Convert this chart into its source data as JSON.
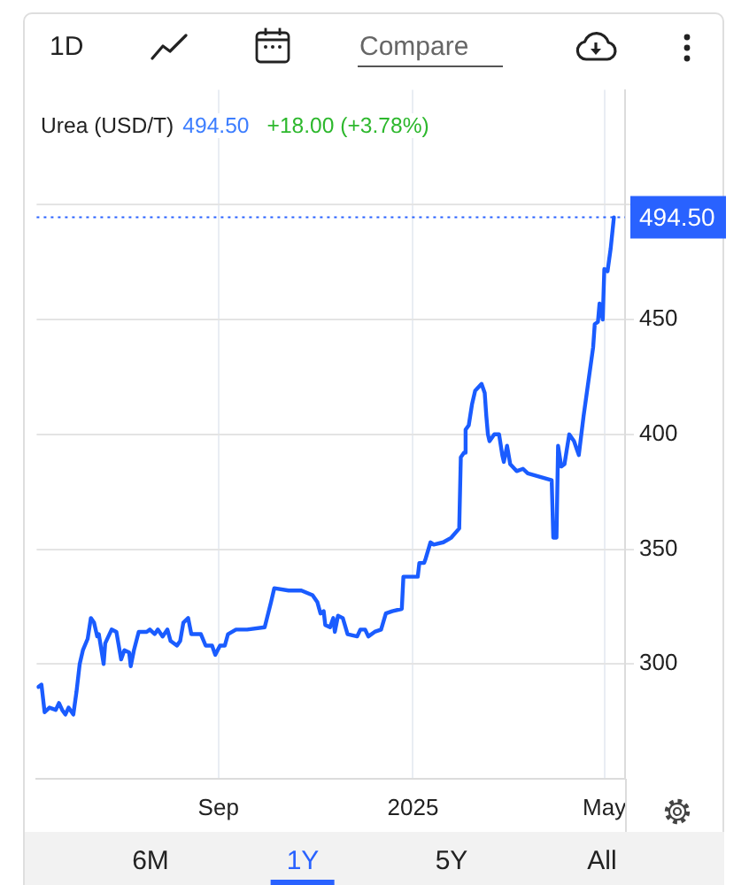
{
  "chart_data": {
    "type": "line",
    "title": "Urea (USD/T)",
    "annotations": [
      "1D",
      "Compare",
      "494.50",
      "+18.00 (+3.78%)",
      "6M",
      "1Y",
      "5Y",
      "All"
    ],
    "x": [
      "2024-05-11",
      "2024-05-13",
      "2024-05-15",
      "2024-05-18",
      "2024-05-22",
      "2024-05-24",
      "2024-05-26",
      "2024-05-28",
      "2024-05-30",
      "2024-06-02",
      "2024-06-04",
      "2024-06-06",
      "2024-06-08",
      "2024-06-11",
      "2024-06-13",
      "2024-06-15",
      "2024-06-17",
      "2024-06-18",
      "2024-06-21",
      "2024-06-22",
      "2024-06-26",
      "2024-06-29",
      "2024-07-02",
      "2024-07-04",
      "2024-07-07",
      "2024-07-08",
      "2024-07-10",
      "2024-07-13",
      "2024-07-18",
      "2024-07-20",
      "2024-07-23",
      "2024-07-25",
      "2024-07-28",
      "2024-07-31",
      "2024-08-02",
      "2024-08-06",
      "2024-08-08",
      "2024-08-10",
      "2024-08-13",
      "2024-08-15",
      "2024-08-21",
      "2024-08-24",
      "2024-08-28",
      "2024-08-30",
      "2024-09-02",
      "2024-09-05",
      "2024-09-07",
      "2024-09-12",
      "2024-09-19",
      "2024-09-30",
      "2024-10-04",
      "2024-10-06",
      "2024-10-15",
      "2024-10-23",
      "2024-10-30",
      "2024-11-02",
      "2024-11-04",
      "2024-11-06",
      "2024-11-07",
      "2024-11-10",
      "2024-11-12",
      "2024-11-13",
      "2024-11-15",
      "2024-11-18",
      "2024-11-21",
      "2024-11-27",
      "2024-11-29",
      "2024-12-02",
      "2024-12-04",
      "2024-12-08",
      "2024-12-12",
      "2024-12-15",
      "2024-12-19",
      "2024-12-25",
      "2024-12-26",
      "2025-01-04",
      "2025-01-05",
      "2025-01-08",
      "2025-01-09",
      "2025-01-12",
      "2025-01-14",
      "2025-01-20",
      "2025-01-25",
      "2025-01-30",
      "2025-01-31",
      "2025-02-02",
      "2025-02-03",
      "2025-02-05",
      "2025-02-07",
      "2025-02-09",
      "2025-02-13",
      "2025-02-15",
      "2025-02-16",
      "2025-02-17",
      "2025-02-18",
      "2025-02-21",
      "2025-02-24",
      "2025-02-26",
      "2025-02-27",
      "2025-03-01",
      "2025-03-03",
      "2025-03-07",
      "2025-03-11",
      "2025-03-14",
      "2025-03-29",
      "2025-03-30",
      "2025-04-01",
      "2025-04-02",
      "2025-04-04",
      "2025-04-06",
      "2025-04-09",
      "2025-04-12",
      "2025-04-15",
      "2025-04-18",
      "2025-04-21",
      "2025-04-24",
      "2025-04-25",
      "2025-04-27",
      "2025-04-28",
      "2025-04-30",
      "2025-05-01",
      "2025-05-03",
      "2025-05-05",
      "2025-05-07"
    ],
    "series": [
      {
        "color": "#1a5cff",
        "values": [
          290,
          291,
          279,
          281,
          280,
          283,
          280,
          278,
          281,
          278,
          288,
          300,
          306,
          311,
          320,
          318,
          312,
          313,
          300,
          309,
          315,
          314,
          302,
          306,
          305,
          299,
          306,
          314,
          314,
          315,
          313,
          315,
          312,
          315,
          310,
          308,
          310,
          318,
          320,
          313,
          313,
          308,
          308,
          304,
          308,
          308,
          313,
          315,
          315,
          316,
          327,
          333,
          332,
          332,
          330,
          327,
          322,
          323,
          317,
          316,
          320,
          314,
          321,
          320,
          313,
          312,
          315,
          315,
          312,
          314,
          315,
          322,
          323,
          324,
          338,
          338,
          344,
          344,
          346,
          353,
          352,
          353,
          355,
          359,
          390,
          392,
          402,
          404,
          413,
          419,
          422,
          418,
          408,
          400,
          397,
          400,
          400,
          391,
          388,
          395,
          387,
          384,
          385,
          383,
          380,
          355,
          355,
          395,
          386,
          387,
          400,
          397,
          391,
          408,
          423,
          438,
          448,
          449,
          457,
          450,
          472,
          471,
          481,
          494.5
        ]
      }
    ],
    "xlim": [
      "2024-05-10",
      "2025-05-14"
    ],
    "xticks": [
      {
        "value": "2024-09-01",
        "label": "Sep"
      },
      {
        "value": "2025-01-01",
        "label": "2025"
      },
      {
        "value": "2025-05-01",
        "label": "May"
      }
    ],
    "ylim": [
      250,
      550
    ],
    "yticks": [
      300,
      350,
      400,
      450,
      {
        "value": 500,
        "label": null
      }
    ],
    "grid": true,
    "ref_lines": [
      {
        "axis": "y",
        "value": 494.5,
        "label": "494.50",
        "color": "#2962ff",
        "line_style": "dotted"
      }
    ]
  }
}
